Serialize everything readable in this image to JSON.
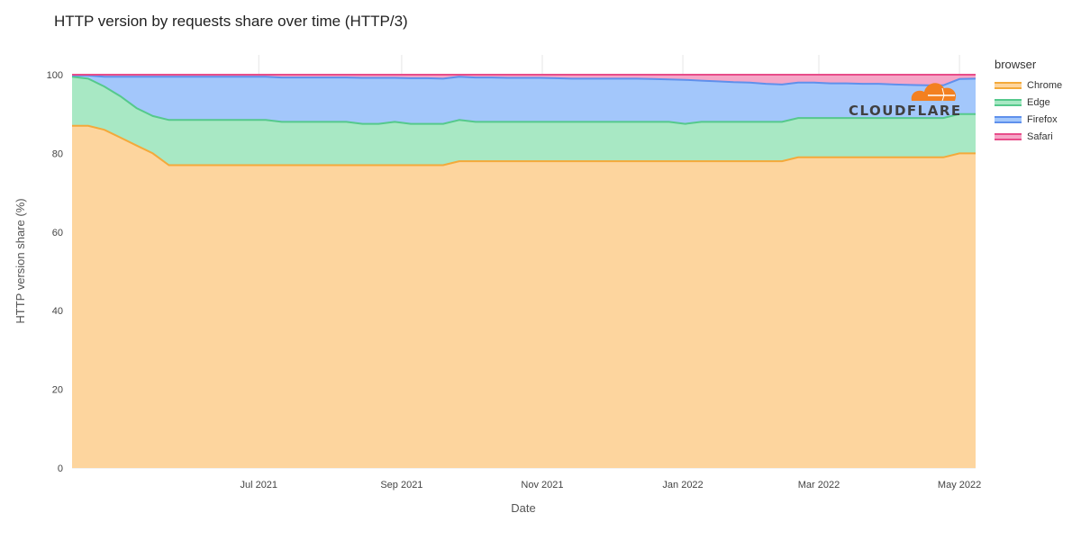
{
  "title": "HTTP version by requests share over time (HTTP/3)",
  "legend": {
    "title": "browser",
    "items": [
      {
        "name": "Chrome",
        "fill": "#fdd59e",
        "line": "#f4a93a"
      },
      {
        "name": "Edge",
        "fill": "#a8e8c4",
        "line": "#55c98c"
      },
      {
        "name": "Firefox",
        "fill": "#a3c7fb",
        "line": "#5f90ec"
      },
      {
        "name": "Safari",
        "fill": "#f5a6c7",
        "line": "#e84d8a"
      }
    ]
  },
  "logo": {
    "text": "CLOUDFLARE",
    "color": "#f38020"
  },
  "chart_data": {
    "type": "area",
    "stacked": true,
    "title": "HTTP version by requests share over time (HTTP/3)",
    "xlabel": "Date",
    "ylabel": "HTTP version share (%)",
    "ylim": [
      0,
      100
    ],
    "y_ticks": [
      0,
      20,
      40,
      60,
      80,
      100
    ],
    "x_range": [
      "2021-04-11",
      "2022-05-08"
    ],
    "x_ticks": [
      {
        "date": "2021-07-01",
        "label": "Jul 2021"
      },
      {
        "date": "2021-09-01",
        "label": "Sep 2021"
      },
      {
        "date": "2021-11-01",
        "label": "Nov 2021"
      },
      {
        "date": "2022-01-01",
        "label": "Jan 2022"
      },
      {
        "date": "2022-03-01",
        "label": "Mar 2022"
      },
      {
        "date": "2022-05-01",
        "label": "May 2022"
      }
    ],
    "grid": true,
    "legend_position": "right",
    "x": [
      "2021-04-11",
      "2021-04-18",
      "2021-04-25",
      "2021-05-02",
      "2021-05-09",
      "2021-05-16",
      "2021-05-23",
      "2021-05-30",
      "2021-06-06",
      "2021-06-13",
      "2021-06-20",
      "2021-06-27",
      "2021-07-04",
      "2021-07-11",
      "2021-07-18",
      "2021-07-25",
      "2021-08-01",
      "2021-08-08",
      "2021-08-15",
      "2021-08-22",
      "2021-08-29",
      "2021-09-05",
      "2021-09-12",
      "2021-09-19",
      "2021-09-26",
      "2021-10-03",
      "2021-10-10",
      "2021-10-17",
      "2021-10-24",
      "2021-10-31",
      "2021-11-07",
      "2021-11-14",
      "2021-11-21",
      "2021-11-28",
      "2021-12-05",
      "2021-12-12",
      "2021-12-19",
      "2021-12-26",
      "2022-01-02",
      "2022-01-09",
      "2022-01-16",
      "2022-01-23",
      "2022-01-30",
      "2022-02-06",
      "2022-02-13",
      "2022-02-20",
      "2022-02-27",
      "2022-03-06",
      "2022-03-13",
      "2022-03-20",
      "2022-03-27",
      "2022-04-03",
      "2022-04-10",
      "2022-04-17",
      "2022-04-24",
      "2022-05-01",
      "2022-05-08"
    ],
    "series": [
      {
        "name": "Chrome",
        "values": [
          87,
          87,
          86,
          84,
          82,
          80,
          77,
          77,
          77,
          77,
          77,
          77,
          77,
          77,
          77,
          77,
          77,
          77,
          77,
          77,
          77,
          77,
          77,
          77,
          78,
          78,
          78,
          78,
          78,
          78,
          78,
          78,
          78,
          78,
          78,
          78,
          78,
          78,
          78,
          78,
          78,
          78,
          78,
          78,
          78,
          79,
          79,
          79,
          79,
          79,
          79,
          79,
          79,
          79,
          79,
          80,
          80
        ]
      },
      {
        "name": "Edge",
        "values": [
          12.5,
          12,
          11,
          10.5,
          9.5,
          9.5,
          11.5,
          11.5,
          11.5,
          11.5,
          11.5,
          11.5,
          11.5,
          11,
          11,
          11,
          11,
          11,
          10.5,
          10.5,
          11,
          10.5,
          10.5,
          10.5,
          10.5,
          10,
          10,
          10,
          10,
          10,
          10,
          10,
          10,
          10,
          10,
          10,
          10,
          10,
          9.5,
          10,
          10,
          10,
          10,
          10,
          10,
          10,
          10,
          10,
          10,
          10,
          10,
          10,
          10,
          10,
          10,
          10,
          10
        ]
      },
      {
        "name": "Firefox",
        "values": [
          0.3,
          0.8,
          2.5,
          5,
          8,
          10,
          11,
          11,
          11,
          11,
          11,
          11,
          11,
          11.3,
          11.3,
          11.3,
          11.3,
          11.3,
          11.7,
          11.7,
          11.2,
          11.6,
          11.6,
          11.5,
          11,
          11.3,
          11.3,
          11.2,
          11.2,
          11.2,
          11.1,
          11,
          11,
          11,
          11,
          11,
          10.9,
          10.8,
          11.2,
          10.5,
          10.3,
          10.1,
          10,
          9.7,
          9.5,
          9,
          9,
          8.8,
          8.8,
          8.7,
          8.7,
          8.5,
          8.4,
          8.3,
          8.3,
          8.9,
          9
        ]
      },
      {
        "name": "Safari",
        "values": [
          0.2,
          0.2,
          0.5,
          0.5,
          0.5,
          0.5,
          0.5,
          0.5,
          0.5,
          0.5,
          0.5,
          0.5,
          0.5,
          0.7,
          0.7,
          0.7,
          0.7,
          0.7,
          0.8,
          0.8,
          0.8,
          0.9,
          0.9,
          1,
          0.5,
          0.7,
          0.7,
          0.8,
          0.8,
          0.8,
          0.9,
          1,
          1,
          1,
          1,
          1,
          1.1,
          1.2,
          1.3,
          1.5,
          1.7,
          1.9,
          2,
          2.3,
          2.5,
          2,
          2,
          2.2,
          2.2,
          2.3,
          2.3,
          2.5,
          2.6,
          2.7,
          2.7,
          1.1,
          1
        ]
      }
    ]
  }
}
